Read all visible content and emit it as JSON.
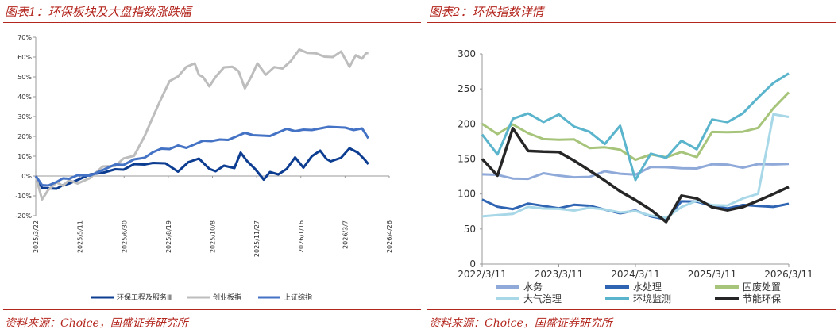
{
  "left": {
    "title": "图表1：环保板块及大盘指数涨跌幅",
    "source": "资料来源：Choice，国盛证券研究所"
  },
  "right": {
    "title": "图表2：环保指数详情",
    "source": "资料来源：Choice，国盛证券研究所"
  },
  "colors": {
    "brand_red": "#b3261e"
  },
  "chart_data": [
    {
      "type": "line",
      "x": [
        "2025/3/22",
        "2025/5/11",
        "2025/6/30",
        "2025/8/19",
        "2025/10/8",
        "2025/11/27",
        "2026/1/16",
        "2026/3/7",
        "2026/4/26"
      ],
      "ylim": [
        -20,
        70
      ],
      "yticks": [
        "-20%",
        "-10%",
        "0%",
        "10%",
        "20%",
        "30%",
        "40%",
        "50%",
        "60%",
        "70%"
      ],
      "grid": false,
      "legend": "bottom",
      "series": [
        {
          "name": "环保工程及服务Ⅲ",
          "color": "#0d3d91",
          "points": [
            [
              0,
              0
            ],
            [
              3,
              -6
            ],
            [
              6,
              -7
            ],
            [
              10,
              -6
            ],
            [
              13,
              -5
            ],
            [
              16,
              -3
            ],
            [
              20,
              -2
            ],
            [
              26,
              0
            ],
            [
              32,
              2
            ],
            [
              38,
              3
            ],
            [
              42,
              4
            ],
            [
              47,
              6
            ],
            [
              52,
              5
            ],
            [
              56,
              7
            ],
            [
              62,
              6
            ],
            [
              68,
              3
            ],
            [
              73,
              7
            ],
            [
              78,
              8
            ],
            [
              83,
              4
            ],
            [
              86,
              2
            ],
            [
              90,
              6
            ],
            [
              95,
              4
            ],
            [
              98,
              11
            ],
            [
              101,
              8
            ],
            [
              105,
              3
            ],
            [
              109,
              -1
            ],
            [
              112,
              2
            ],
            [
              116,
              0
            ],
            [
              120,
              4
            ],
            [
              124,
              9
            ],
            [
              128,
              5
            ],
            [
              132,
              10
            ],
            [
              136,
              12
            ],
            [
              139,
              9
            ],
            [
              141,
              7
            ],
            [
              146,
              10
            ],
            [
              150,
              14
            ],
            [
              154,
              11
            ],
            [
              157,
              9
            ],
            [
              159,
              6
            ]
          ]
        },
        {
          "name": "创业板指",
          "color": "#bdbdbd",
          "points": [
            [
              0,
              0
            ],
            [
              3,
              -10
            ],
            [
              6,
              -7
            ],
            [
              10,
              -5
            ],
            [
              13,
              -4
            ],
            [
              16,
              -3
            ],
            [
              20,
              -2
            ],
            [
              26,
              -1
            ],
            [
              32,
              3
            ],
            [
              38,
              6
            ],
            [
              42,
              8
            ],
            [
              47,
              12
            ],
            [
              52,
              20
            ],
            [
              56,
              28
            ],
            [
              60,
              40
            ],
            [
              64,
              47
            ],
            [
              68,
              52
            ],
            [
              72,
              55
            ],
            [
              76,
              55
            ],
            [
              78,
              52
            ],
            [
              80,
              49
            ],
            [
              83,
              47
            ],
            [
              86,
              50
            ],
            [
              90,
              53
            ],
            [
              94,
              56
            ],
            [
              97,
              52
            ],
            [
              100,
              46
            ],
            [
              103,
              50
            ],
            [
              106,
              55
            ],
            [
              110,
              52
            ],
            [
              114,
              54
            ],
            [
              118,
              56
            ],
            [
              122,
              58
            ],
            [
              126,
              62
            ],
            [
              130,
              63
            ],
            [
              134,
              61
            ],
            [
              138,
              62
            ],
            [
              142,
              60
            ],
            [
              146,
              61
            ],
            [
              150,
              56
            ],
            [
              153,
              60
            ],
            [
              156,
              61
            ],
            [
              158,
              62
            ],
            [
              159,
              62
            ]
          ]
        },
        {
          "name": "上证综指",
          "color": "#4472c4",
          "points": [
            [
              0,
              0
            ],
            [
              3,
              -5
            ],
            [
              6,
              -4
            ],
            [
              10,
              -3
            ],
            [
              13,
              -2
            ],
            [
              16,
              -1
            ],
            [
              20,
              0
            ],
            [
              26,
              1
            ],
            [
              32,
              3
            ],
            [
              38,
              5
            ],
            [
              42,
              6
            ],
            [
              47,
              8
            ],
            [
              52,
              10
            ],
            [
              56,
              12
            ],
            [
              60,
              13
            ],
            [
              64,
              14
            ],
            [
              68,
              15
            ],
            [
              72,
              15
            ],
            [
              76,
              16
            ],
            [
              80,
              17
            ],
            [
              84,
              18
            ],
            [
              88,
              18
            ],
            [
              92,
              19
            ],
            [
              96,
              20
            ],
            [
              100,
              21
            ],
            [
              104,
              21
            ],
            [
              108,
              20
            ],
            [
              112,
              21
            ],
            [
              116,
              22
            ],
            [
              120,
              23
            ],
            [
              124,
              23
            ],
            [
              128,
              23
            ],
            [
              132,
              24
            ],
            [
              136,
              24
            ],
            [
              140,
              24
            ],
            [
              144,
              25
            ],
            [
              148,
              24
            ],
            [
              152,
              24
            ],
            [
              156,
              24
            ],
            [
              158,
              20
            ],
            [
              159,
              19
            ]
          ]
        }
      ]
    },
    {
      "type": "line",
      "x": [
        "2022/3/11",
        "2023/3/11",
        "2024/3/11",
        "2025/3/11",
        "2026/3/11"
      ],
      "ylim": [
        0,
        300
      ],
      "yticks": [
        "0",
        "50",
        "100",
        "150",
        "200",
        "250",
        "300"
      ],
      "grid": false,
      "legend": "bottom",
      "series": [
        {
          "name": "水务",
          "color": "#8fa9d9",
          "points": [
            [
              0,
              128
            ],
            [
              0.2,
              125
            ],
            [
              0.4,
              122
            ],
            [
              0.6,
              124
            ],
            [
              0.8,
              126
            ],
            [
              1,
              125
            ],
            [
              1.2,
              125
            ],
            [
              1.4,
              128
            ],
            [
              1.6,
              130
            ],
            [
              1.8,
              129
            ],
            [
              2,
              130
            ],
            [
              2.2,
              135
            ],
            [
              2.4,
              137
            ],
            [
              2.6,
              138
            ],
            [
              2.8,
              140
            ],
            [
              3,
              140
            ],
            [
              3.2,
              142
            ],
            [
              3.4,
              140
            ],
            [
              3.6,
              139
            ],
            [
              3.8,
              141
            ],
            [
              4,
              143
            ]
          ]
        },
        {
          "name": "水处理",
          "color": "#2f64b3",
          "points": [
            [
              0,
              92
            ],
            [
              0.2,
              83
            ],
            [
              0.4,
              82
            ],
            [
              0.6,
              84
            ],
            [
              0.8,
              83
            ],
            [
              1,
              82
            ],
            [
              1.2,
              81
            ],
            [
              1.4,
              82
            ],
            [
              1.6,
              79
            ],
            [
              1.8,
              76
            ],
            [
              2,
              74
            ],
            [
              2.2,
              68
            ],
            [
              2.4,
              66
            ],
            [
              2.6,
              86
            ],
            [
              2.8,
              88
            ],
            [
              3,
              84
            ],
            [
              3.2,
              83
            ],
            [
              3.4,
              82
            ],
            [
              3.6,
              83
            ],
            [
              3.8,
              84
            ],
            [
              4,
              86
            ]
          ]
        },
        {
          "name": "固废处置",
          "color": "#a6c47a",
          "points": [
            [
              0,
              200
            ],
            [
              0.2,
              182
            ],
            [
              0.4,
              198
            ],
            [
              0.6,
              188
            ],
            [
              0.8,
              182
            ],
            [
              1,
              175
            ],
            [
              1.2,
              178
            ],
            [
              1.4,
              168
            ],
            [
              1.6,
              163
            ],
            [
              1.8,
              162
            ],
            [
              2,
              150
            ],
            [
              2.2,
              160
            ],
            [
              2.4,
              150
            ],
            [
              2.6,
              160
            ],
            [
              2.8,
              155
            ],
            [
              3,
              185
            ],
            [
              3.2,
              187
            ],
            [
              3.4,
              190
            ],
            [
              3.6,
              198
            ],
            [
              3.8,
              220
            ],
            [
              4,
              245
            ]
          ]
        },
        {
          "name": "大气治理",
          "color": "#a8d8e8",
          "points": [
            [
              0,
              68
            ],
            [
              0.2,
              70
            ],
            [
              0.4,
              74
            ],
            [
              0.6,
              78
            ],
            [
              0.8,
              78
            ],
            [
              1,
              80
            ],
            [
              1.2,
              80
            ],
            [
              1.4,
              78
            ],
            [
              1.6,
              78
            ],
            [
              1.8,
              76
            ],
            [
              2,
              72
            ],
            [
              2.2,
              68
            ],
            [
              2.4,
              67
            ],
            [
              2.6,
              85
            ],
            [
              2.8,
              88
            ],
            [
              3,
              84
            ],
            [
              3.2,
              86
            ],
            [
              3.4,
              90
            ],
            [
              3.6,
              99
            ],
            [
              3.8,
              215
            ],
            [
              4,
              210
            ]
          ]
        },
        {
          "name": "环境监测",
          "color": "#5ab4cc",
          "points": [
            [
              0,
              185
            ],
            [
              0.2,
              160
            ],
            [
              0.4,
              205
            ],
            [
              0.6,
              215
            ],
            [
              0.8,
              205
            ],
            [
              1,
              210
            ],
            [
              1.2,
              195
            ],
            [
              1.4,
              190
            ],
            [
              1.6,
              175
            ],
            [
              1.8,
              195
            ],
            [
              2,
              120
            ],
            [
              2.2,
              160
            ],
            [
              2.4,
              148
            ],
            [
              2.6,
              175
            ],
            [
              2.8,
              165
            ],
            [
              3,
              210
            ],
            [
              3.2,
              200
            ],
            [
              3.4,
              215
            ],
            [
              3.6,
              240
            ],
            [
              3.8,
              255
            ],
            [
              4,
              272
            ]
          ]
        },
        {
          "name": "节能环保",
          "color": "#262626",
          "points": [
            [
              0,
              150
            ],
            [
              0.2,
              125
            ],
            [
              0.4,
              195
            ],
            [
              0.6,
              165
            ],
            [
              0.8,
              158
            ],
            [
              1,
              160
            ],
            [
              1.2,
              150
            ],
            [
              1.4,
              130
            ],
            [
              1.6,
              118
            ],
            [
              1.8,
              105
            ],
            [
              2,
              95
            ],
            [
              2.2,
              75
            ],
            [
              2.4,
              60
            ],
            [
              2.6,
              100
            ],
            [
              2.8,
              90
            ],
            [
              3,
              80
            ],
            [
              3.2,
              78
            ],
            [
              3.4,
              85
            ],
            [
              3.6,
              88
            ],
            [
              3.8,
              100
            ],
            [
              4,
              110
            ]
          ]
        }
      ]
    }
  ]
}
